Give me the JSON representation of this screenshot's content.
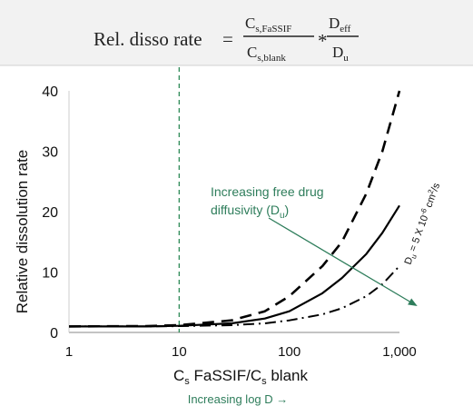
{
  "formula": {
    "lhs": "Rel. disso rate",
    "equals": "=",
    "frac1": {
      "num_main": "C",
      "num_sub": "s,FaSSIF",
      "den_main": "C",
      "den_sub": "s,blank"
    },
    "times": "*",
    "frac2": {
      "num_main": "D",
      "num_sub": "eff",
      "den_main": "D",
      "den_sub": "u"
    }
  },
  "chart_data": {
    "type": "line",
    "x_scale": "log",
    "xlim": [
      1,
      1000
    ],
    "ylim": [
      0,
      40
    ],
    "x_ticks": [
      1,
      10,
      100,
      1000
    ],
    "x_tick_labels": [
      "1",
      "10",
      "100",
      "1,000"
    ],
    "y_ticks": [
      0,
      10,
      20,
      30,
      40
    ],
    "y_tick_labels": [
      "0",
      "10",
      "20",
      "30",
      "40"
    ],
    "xlabel": {
      "c1": "C",
      "c1_sub": "s",
      "mid": " FaSSIF/C",
      "c2_sub": "s",
      "tail": " blank"
    },
    "xlabel_sub": "Increasing log D →",
    "ylabel": "Relative dissolution rate",
    "vline_x": 10,
    "grid": false,
    "colors": {
      "curves": "#000000",
      "annotation": "#2e7d5b",
      "header_bg": "#f2f2f2"
    },
    "series": [
      {
        "style": "dashed",
        "x": [
          1,
          5,
          10,
          30,
          60,
          100,
          200,
          300,
          500,
          700,
          1000
        ],
        "values": [
          1.0,
          1.05,
          1.2,
          2.0,
          3.5,
          6.0,
          11.0,
          15.0,
          23.0,
          30.0,
          40.0
        ]
      },
      {
        "style": "solid",
        "x": [
          1,
          5,
          10,
          30,
          60,
          100,
          200,
          300,
          500,
          700,
          1000
        ],
        "values": [
          1.0,
          1.0,
          1.1,
          1.5,
          2.3,
          3.5,
          6.5,
          9.0,
          13.0,
          16.5,
          21.0
        ]
      },
      {
        "style": "dashdot",
        "x": [
          1,
          5,
          10,
          30,
          60,
          100,
          200,
          300,
          500,
          700,
          1000
        ],
        "values": [
          1.0,
          1.0,
          1.05,
          1.2,
          1.5,
          2.0,
          3.0,
          4.0,
          6.0,
          8.0,
          11.0
        ]
      }
    ],
    "annotation": {
      "line1": "Increasing  free drug",
      "line2_main": "diffusivity (D",
      "line2_sub": "u",
      "line2_end": ")"
    },
    "curve_label": {
      "d": "D",
      "d_sub": "u",
      "eq": " = 5 X 10",
      "exp": "-6",
      "unit": " cm",
      "unit_exp": "2",
      "tail": "/s"
    }
  }
}
